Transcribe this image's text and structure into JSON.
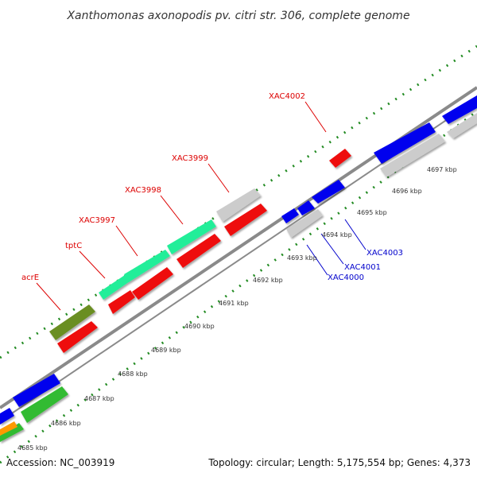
{
  "title": "Xanthomonas axonopodis pv. citri str. 306, complete genome",
  "footer": {
    "accession": "Accession: NC_003919",
    "topology": "Topology: circular; Length: 5,175,554 bp; Genes: 4,373"
  },
  "colors": {
    "red_label": "#dd0000",
    "blue_label": "#0000cc",
    "backbone": "#888888",
    "tick": "#228b22"
  },
  "scale_labels": [
    {
      "text": "4685 kbp"
    },
    {
      "text": "4686 kbp"
    },
    {
      "text": "4687 kbp"
    },
    {
      "text": "4688 kbp"
    },
    {
      "text": "4689 kbp"
    },
    {
      "text": "4690 kbp"
    },
    {
      "text": "4691 kbp"
    },
    {
      "text": "4692 kbp"
    },
    {
      "text": "4693 kbp"
    },
    {
      "text": "4694 kbp"
    },
    {
      "text": "4695 kbp"
    },
    {
      "text": "4696 kbp"
    },
    {
      "text": "4697 kbp"
    }
  ],
  "gene_labels": [
    {
      "text": "acrE",
      "color": "#dd0000"
    },
    {
      "text": "tptC",
      "color": "#dd0000"
    },
    {
      "text": "XAC3997",
      "color": "#dd0000"
    },
    {
      "text": "XAC3998",
      "color": "#dd0000"
    },
    {
      "text": "XAC3999",
      "color": "#dd0000"
    },
    {
      "text": "XAC4002",
      "color": "#dd0000"
    },
    {
      "text": "XAC4003",
      "color": "#0000cc"
    },
    {
      "text": "XAC4001",
      "color": "#0000cc"
    },
    {
      "text": "XAC4000",
      "color": "#0000cc"
    }
  ]
}
